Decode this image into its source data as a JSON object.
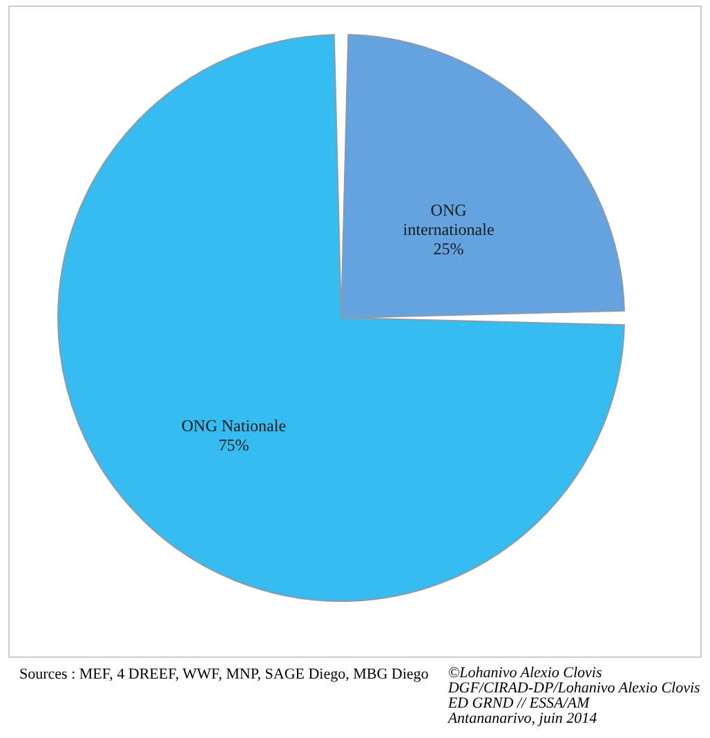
{
  "chart_data": {
    "type": "pie",
    "categories": [
      "ONG internationale",
      "ONG Nationale"
    ],
    "values": [
      25,
      75
    ],
    "colors": [
      "#65a3e0",
      "#35bdf2"
    ],
    "value_labels": [
      "25%",
      "75%"
    ],
    "annotations": [
      "Sources : MEF, 4  DREEF, WWF, MNP, SAGE Diego, MBG Diego",
      "©Lohanivo Alexio Clovis\nDGF/CIRAD-DP/Lohanivo Alexio Clovis\nED GRND // ESSA/AM\nAntananarivo, juin 2014"
    ]
  }
}
